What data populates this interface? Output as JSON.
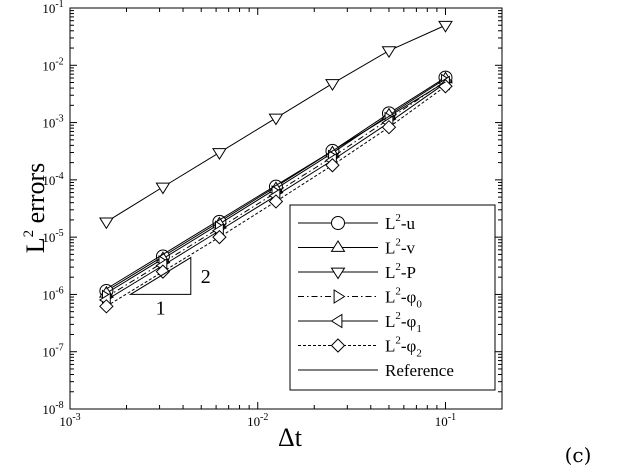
{
  "panel_label": "(c)",
  "chart_data": {
    "type": "line",
    "title": "",
    "xlabel": "Δt",
    "ylabel": "L 2 errors",
    "ylabel_base": "L",
    "ylabel_sup": "2",
    "ylabel_rest": " errors",
    "xscale": "log",
    "yscale": "log",
    "xlim": [
      0.001,
      0.2
    ],
    "ylim": [
      1e-08,
      0.1
    ],
    "grid": false,
    "legend_position": "bottom-right",
    "x_ticks": [
      {
        "value": 0.001,
        "base": "10",
        "exp": "-3"
      },
      {
        "value": 0.01,
        "base": "10",
        "exp": "-2"
      },
      {
        "value": 0.1,
        "base": "10",
        "exp": "-1"
      }
    ],
    "y_ticks": [
      {
        "value": 1e-08,
        "base": "10",
        "exp": "-8"
      },
      {
        "value": 1e-07,
        "base": "10",
        "exp": "-7"
      },
      {
        "value": 1e-06,
        "base": "10",
        "exp": "-6"
      },
      {
        "value": 1e-05,
        "base": "10",
        "exp": "-5"
      },
      {
        "value": 0.0001,
        "base": "10",
        "exp": "-4"
      },
      {
        "value": 0.001,
        "base": "10",
        "exp": "-3"
      },
      {
        "value": 0.01,
        "base": "10",
        "exp": "-2"
      },
      {
        "value": 0.1,
        "base": "10",
        "exp": "-1"
      }
    ],
    "x": [
      0.0015625,
      0.003125,
      0.00625,
      0.0125,
      0.025,
      0.05,
      0.1
    ],
    "series": [
      {
        "name": "L2-u",
        "label_base": "L",
        "label_sup": "2",
        "label_main": "-u",
        "label_sub": "",
        "marker": "circle",
        "dash": "solid",
        "values": [
          1.15e-06,
          4.6e-06,
          1.85e-05,
          7.6e-05,
          0.00032,
          0.00145,
          0.0061
        ]
      },
      {
        "name": "L2-v",
        "label_base": "L",
        "label_sup": "2",
        "label_main": "-v",
        "label_sub": "",
        "marker": "triangle-up",
        "dash": "solid",
        "values": [
          1.05e-06,
          4.2e-06,
          1.7e-05,
          7e-05,
          0.000295,
          0.00135,
          0.0058
        ]
      },
      {
        "name": "L2-P",
        "label_base": "L",
        "label_sup": "2",
        "label_main": "-P",
        "label_sub": "",
        "marker": "triangle-down",
        "dash": "solid",
        "values": [
          1.85e-05,
          7.5e-05,
          0.0003,
          0.0012,
          0.0048,
          0.018,
          0.05
        ]
      },
      {
        "name": "L2-φ0",
        "label_base": "L",
        "label_sup": "2",
        "label_main": "-φ",
        "label_sub": "0",
        "marker": "triangle-right",
        "dash": "dashdot",
        "values": [
          9e-07,
          3.6e-06,
          1.45e-05,
          6e-05,
          0.00025,
          0.00115,
          0.0053
        ]
      },
      {
        "name": "L2-φ1",
        "label_base": "L",
        "label_sup": "2",
        "label_main": "-φ",
        "label_sub": "1",
        "marker": "triangle-left",
        "dash": "solid",
        "values": [
          8e-07,
          3.2e-06,
          1.3e-05,
          5.3e-05,
          0.00022,
          0.001,
          0.0049
        ]
      },
      {
        "name": "L2-φ2",
        "label_base": "L",
        "label_sup": "2",
        "label_main": "-φ",
        "label_sub": "2",
        "marker": "diamond",
        "dash": "dotted",
        "values": [
          6.2e-07,
          2.5e-06,
          1e-05,
          4.2e-05,
          0.00018,
          0.00083,
          0.0043
        ]
      },
      {
        "name": "Reference",
        "label_base": "Reference",
        "label_sup": "",
        "label_main": "",
        "label_sub": "",
        "marker": "none",
        "dash": "solid",
        "values": [
          1.25e-06,
          5e-06,
          2e-05,
          8e-05,
          0.00032,
          0.00128,
          0.00512
        ]
      }
    ],
    "slope_triangle": {
      "rise_label": "2",
      "run_label": "1",
      "x_start": 0.0021,
      "x_end": 0.0044,
      "y_low": 1e-06,
      "y_high": 4.4e-06
    }
  }
}
